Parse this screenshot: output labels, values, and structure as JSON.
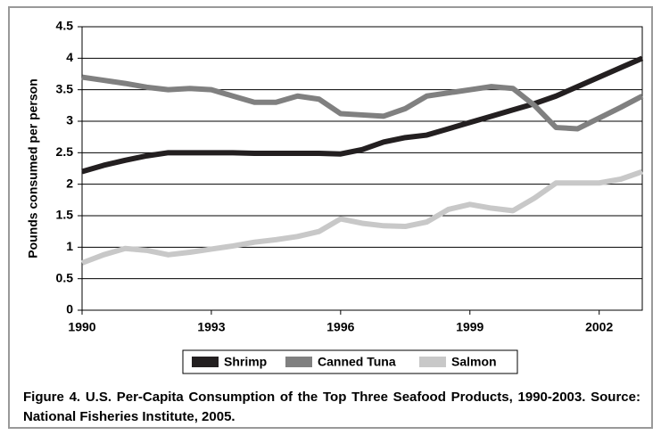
{
  "chart_data": {
    "type": "line",
    "y_axis_label": "Pounds consumed per person",
    "caption": "Figure 4. U.S. Per-Capita Consumption of the Top Three Seafood Products, 1990-2003. Source: National Fisheries Institute, 2005.",
    "x": [
      1990,
      1990.5,
      1991,
      1991.5,
      1992,
      1992.5,
      1993,
      1993.5,
      1994,
      1994.5,
      1995,
      1995.5,
      1996,
      1996.5,
      1997,
      1997.5,
      1998,
      1998.5,
      1999,
      1999.5,
      2000,
      2000.5,
      2001,
      2001.5,
      2002,
      2002.5,
      2003
    ],
    "series": [
      {
        "name": "Shrimp",
        "color": "#231f20",
        "values": [
          2.2,
          2.3,
          2.38,
          2.45,
          2.5,
          2.5,
          2.5,
          2.5,
          2.49,
          2.49,
          2.49,
          2.49,
          2.48,
          2.55,
          2.67,
          2.74,
          2.78,
          2.88,
          2.98,
          3.08,
          3.18,
          3.28,
          3.4,
          3.55,
          3.7,
          3.85,
          4.0
        ]
      },
      {
        "name": "Canned Tuna",
        "color": "#808080",
        "values": [
          3.7,
          3.65,
          3.6,
          3.54,
          3.5,
          3.52,
          3.5,
          3.4,
          3.3,
          3.3,
          3.4,
          3.35,
          3.12,
          3.1,
          3.08,
          3.2,
          3.4,
          3.45,
          3.5,
          3.55,
          3.52,
          3.25,
          2.9,
          2.88,
          3.05,
          3.22,
          3.4
        ]
      },
      {
        "name": "Salmon",
        "color": "#c8c8c8",
        "values": [
          0.75,
          0.88,
          0.98,
          0.95,
          0.88,
          0.92,
          0.97,
          1.02,
          1.08,
          1.12,
          1.17,
          1.25,
          1.45,
          1.38,
          1.34,
          1.33,
          1.4,
          1.6,
          1.68,
          1.62,
          1.58,
          1.78,
          2.02,
          2.02,
          2.02,
          2.08,
          2.2
        ]
      }
    ],
    "xlim": [
      1990,
      2003
    ],
    "xticks": [
      1990,
      1993,
      1996,
      1999,
      2002
    ],
    "ylim": [
      0,
      4.5
    ],
    "yticks": [
      0,
      0.5,
      1,
      1.5,
      2,
      2.5,
      3,
      3.5,
      4,
      4.5
    ],
    "grid": true,
    "legend": "bottom"
  }
}
